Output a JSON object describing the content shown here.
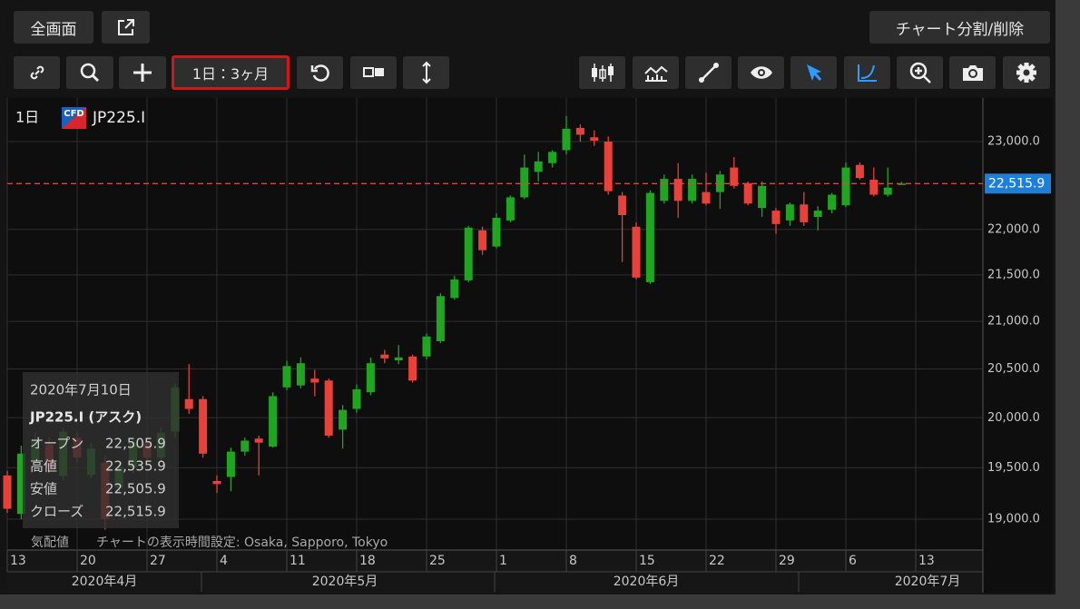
{
  "ui": {
    "fullscreen": "全画面",
    "split": "チャート分割/削除",
    "period": "1日：3ヶ月",
    "quote": "気配値",
    "timezone": "チャートの表示時間設定: Osaka, Sapporo, Tokyo"
  },
  "chart_data": {
    "type": "candlestick",
    "interval": "1日",
    "badge": "CFD",
    "symbol": "JP225.I",
    "log": true,
    "grid": true,
    "colors": {
      "up": "#1fa51f",
      "down": "#e8413a"
    },
    "ylim": [
      18714,
      23491
    ],
    "yticks": [
      {
        "value": 19000,
        "label": "19,000.0"
      },
      {
        "value": 19500,
        "label": "19,500.0"
      },
      {
        "value": 20000,
        "label": "20,000.0"
      },
      {
        "value": 20500,
        "label": "20,500.0"
      },
      {
        "value": 21000,
        "label": "21,000.0"
      },
      {
        "value": 21500,
        "label": "21,500.0"
      },
      {
        "value": 22000,
        "label": "22,000.0"
      },
      {
        "value": 23000,
        "label": "23,000.0"
      }
    ],
    "categories": [
      "13",
      null,
      null,
      null,
      null,
      "20",
      null,
      null,
      null,
      null,
      "27",
      null,
      null,
      null,
      null,
      "4",
      null,
      null,
      null,
      null,
      "11",
      null,
      null,
      null,
      null,
      "18",
      null,
      null,
      null,
      null,
      "25",
      null,
      null,
      null,
      null,
      "1",
      null,
      null,
      null,
      null,
      "8",
      null,
      null,
      null,
      null,
      "15",
      null,
      null,
      null,
      null,
      "22",
      null,
      null,
      null,
      null,
      "29",
      null,
      null,
      null,
      null,
      "6",
      null,
      null,
      null,
      null,
      "13",
      null,
      null,
      null,
      null
    ],
    "months": [
      "2020年4月",
      "2020年5月",
      "2020年6月",
      "2020年7月"
    ],
    "open": [
      19425,
      19050,
      19560,
      19730,
      19420,
      19800,
      19430,
      19550,
      19300,
      19500,
      19750,
      19600,
      19860,
      20190,
      20190,
      19370,
      19410,
      19660,
      19790,
      19710,
      20310,
      20330,
      20400,
      20380,
      19880,
      20090,
      20260,
      20650,
      20590,
      20630,
      20630,
      20790,
      21250,
      21440,
      21990,
      21810,
      22100,
      22360,
      22650,
      22750,
      22900,
      23160,
      23050,
      23000,
      22380,
      22030,
      21420,
      22320,
      22570,
      22320,
      22420,
      22420,
      22700,
      22520,
      22240,
      22210,
      22100,
      22280,
      22140,
      22220,
      22270,
      22730,
      22560,
      22390,
      22505.9,
      null,
      null,
      null,
      null,
      null
    ],
    "high": [
      19470,
      19720,
      19850,
      19800,
      19900,
      19850,
      19750,
      19620,
      19560,
      19800,
      19800,
      19900,
      20350,
      20550,
      20220,
      19425,
      19700,
      19800,
      19820,
      20260,
      20585,
      20620,
      20490,
      20400,
      20130,
      20340,
      20620,
      20700,
      20750,
      20650,
      20870,
      21300,
      21490,
      22040,
      22030,
      22180,
      22380,
      22850,
      22880,
      22900,
      23300,
      23200,
      23130,
      23060,
      22420,
      22080,
      22440,
      22620,
      22750,
      22620,
      22640,
      22660,
      22820,
      22540,
      22540,
      22240,
      22300,
      22420,
      22260,
      22410,
      22760,
      22760,
      22700,
      22700,
      22535.9,
      null,
      null,
      null,
      null,
      null
    ],
    "low": [
      19060,
      19000,
      19500,
      19450,
      19380,
      19550,
      19400,
      18900,
      19250,
      19450,
      19550,
      19550,
      19800,
      20040,
      19600,
      19254,
      19270,
      19620,
      19425,
      19700,
      20280,
      20300,
      20220,
      19800,
      19690,
      20050,
      20230,
      20560,
      20550,
      20360,
      20600,
      20770,
      21230,
      21420,
      21720,
      21790,
      22080,
      22340,
      22540,
      22700,
      22850,
      23000,
      22950,
      22390,
      21640,
      21450,
      21400,
      22290,
      22130,
      22290,
      22270,
      22230,
      22460,
      22270,
      22140,
      21950,
      22040,
      22040,
      21990,
      22180,
      22250,
      22560,
      22370,
      22370,
      22505.9,
      null,
      null,
      null,
      null,
      null
    ],
    "close": [
      19100,
      19640,
      19770,
      19510,
      19860,
      19600,
      19690,
      19000,
      19510,
      19750,
      19600,
      19850,
      20310,
      20090,
      19640,
      19340,
      19660,
      19770,
      19750,
      20220,
      20530,
      20560,
      20360,
      19820,
      20080,
      20290,
      20560,
      20610,
      20620,
      20380,
      20840,
      21270,
      21450,
      22020,
      21770,
      22130,
      22360,
      22700,
      22770,
      22880,
      23150,
      23080,
      23010,
      22430,
      22160,
      21470,
      22410,
      22570,
      22320,
      22570,
      22290,
      22620,
      22490,
      22290,
      22490,
      22060,
      22280,
      22080,
      22210,
      22390,
      22700,
      22580,
      22390,
      22470,
      22515.9,
      null,
      null,
      null,
      null,
      null
    ],
    "last_price": {
      "value": 22515.9,
      "label": "22,515.9"
    }
  },
  "tooltip": {
    "date": "2020年7月10日",
    "title": "JP225.I (アスク)",
    "rows": [
      [
        "オープン",
        "22,505.9"
      ],
      [
        "高値",
        "22,535.9"
      ],
      [
        "安値",
        "22,505.9"
      ],
      [
        "クローズ",
        "22,515.9"
      ]
    ]
  }
}
